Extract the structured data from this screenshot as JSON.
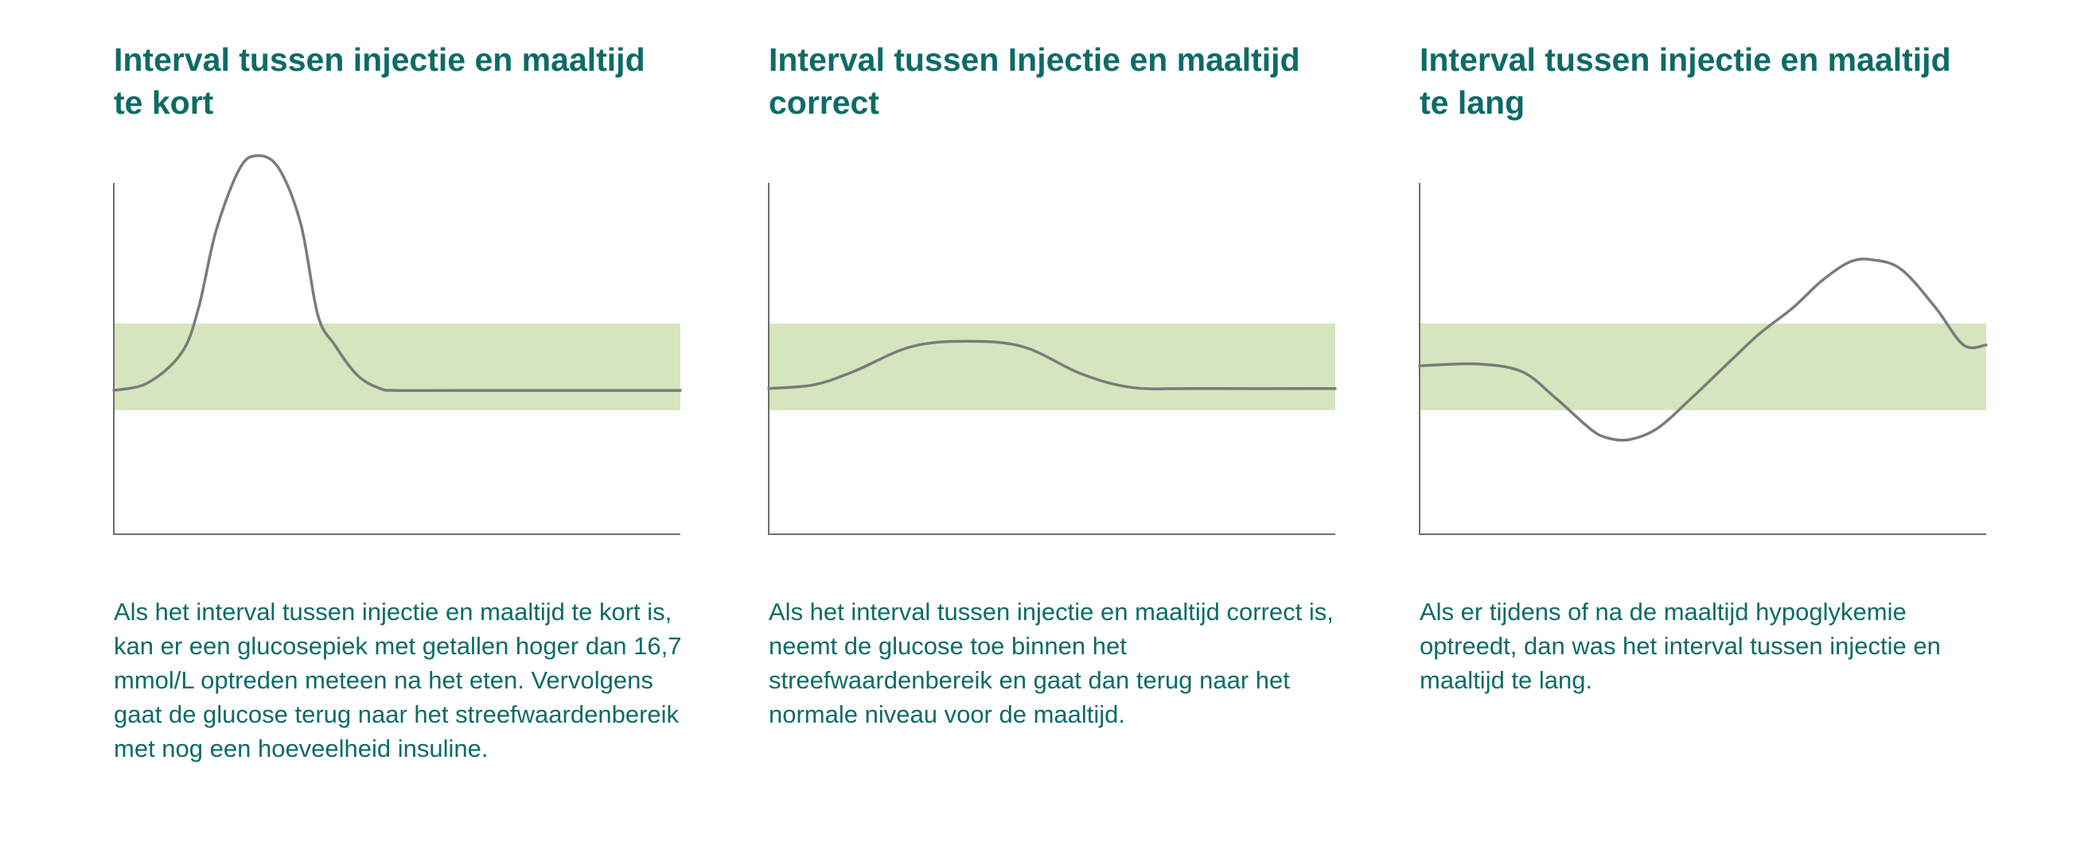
{
  "colors": {
    "heading": "#0d6b67",
    "text": "#0d6b67",
    "target_band": "#d5e5bd",
    "curve": "#7b7b7b",
    "axis": "#6e6e6e"
  },
  "chart_data": [
    {
      "type": "line",
      "title": "Interval tussen injectie en maaltijd te kort",
      "description": "Als het interval tussen injectie en maaltijd te kort is, kan er een glucosepiek met getallen hoger dan 16,7 mmol/L optreden meteen na het eten. Vervolgens gaat de glucose terug naar het streefwaardenbereik met nog een hoeveelheid insuline.",
      "xlabel": "",
      "ylabel": "",
      "xlim": [
        0,
        100
      ],
      "ylim": [
        0,
        100
      ],
      "target_band": [
        32.8,
        55.7
      ],
      "grid": false,
      "series": [
        {
          "x": [
            0,
            6,
            12,
            15,
            18,
            22,
            25,
            29,
            33,
            36,
            39,
            43,
            47,
            50,
            60,
            80,
            100
          ],
          "y": [
            38,
            40,
            48,
            60,
            80,
            96,
            100,
            97,
            82,
            58,
            50,
            42,
            38.5,
            38,
            38,
            38,
            38
          ]
        }
      ]
    },
    {
      "type": "line",
      "title": "Interval tussen Injectie en maaltijd correct",
      "description": "Als het interval tussen injectie en maaltijd correct is, neemt de glucose toe binnen het streefwaardenbereik en gaat dan terug naar het normale niveau voor de maaltijd.",
      "xlabel": "",
      "ylabel": "",
      "xlim": [
        0,
        100
      ],
      "ylim": [
        0,
        100
      ],
      "target_band": [
        32.8,
        55.7
      ],
      "grid": false,
      "series": [
        {
          "x": [
            0,
            8,
            15,
            25,
            35,
            45,
            55,
            64,
            75,
            100
          ],
          "y": [
            38.5,
            39.5,
            43,
            49.5,
            51,
            49.5,
            42.5,
            38.8,
            38.5,
            38.5
          ]
        }
      ]
    },
    {
      "type": "line",
      "title": "Interval tussen injectie en maaltijd te lang",
      "description": "Als er tijdens of na de maaltijd hypoglykemie optreedt, dan was het interval tussen injectie en maaltijd te lang.",
      "xlabel": "",
      "ylabel": "",
      "xlim": [
        0,
        100
      ],
      "ylim": [
        0,
        100
      ],
      "target_band": [
        32.8,
        55.7
      ],
      "grid": false,
      "series": [
        {
          "x": [
            0,
            10,
            18,
            24,
            30,
            33,
            37,
            42,
            48,
            55,
            60,
            66,
            71,
            76,
            80,
            85,
            91,
            96,
            100
          ],
          "y": [
            44.5,
            45,
            43,
            36,
            28,
            25.5,
            25,
            28,
            36,
            46,
            53,
            60,
            67,
            72,
            72.5,
            70,
            60,
            50,
            50
          ]
        }
      ]
    }
  ]
}
